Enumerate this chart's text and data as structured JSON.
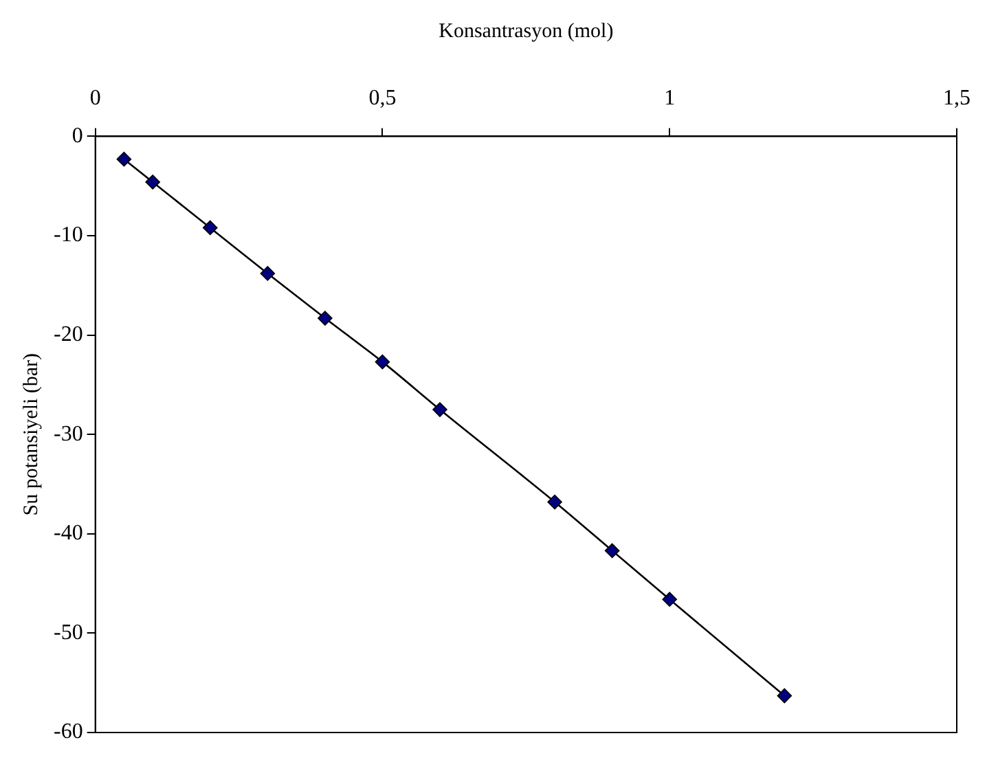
{
  "chart_data": {
    "type": "line",
    "xlabel": "Konsantrasyon (mol)",
    "ylabel": "Su potansiyeli (bar)",
    "x": [
      0.05,
      0.1,
      0.2,
      0.3,
      0.4,
      0.5,
      0.6,
      0.8,
      0.9,
      1.0,
      1.2
    ],
    "series": [
      {
        "color": "#000080",
        "values": [
          -2.3,
          -4.6,
          -9.2,
          -13.8,
          -18.3,
          -22.7,
          -27.5,
          -36.8,
          -41.7,
          -46.6,
          -56.3
        ]
      }
    ],
    "xlim": [
      0,
      1.5
    ],
    "xticks": [
      0,
      {
        "value": 0.5,
        "label": "0,5"
      },
      1,
      {
        "value": 1.5,
        "label": "1,5"
      }
    ],
    "ylim": [
      -60,
      0
    ],
    "yticks": [
      0,
      -10,
      -20,
      -30,
      -40,
      -50,
      -60
    ],
    "grid": false,
    "legend": false,
    "marker": "diamond",
    "line_style": "solid"
  }
}
